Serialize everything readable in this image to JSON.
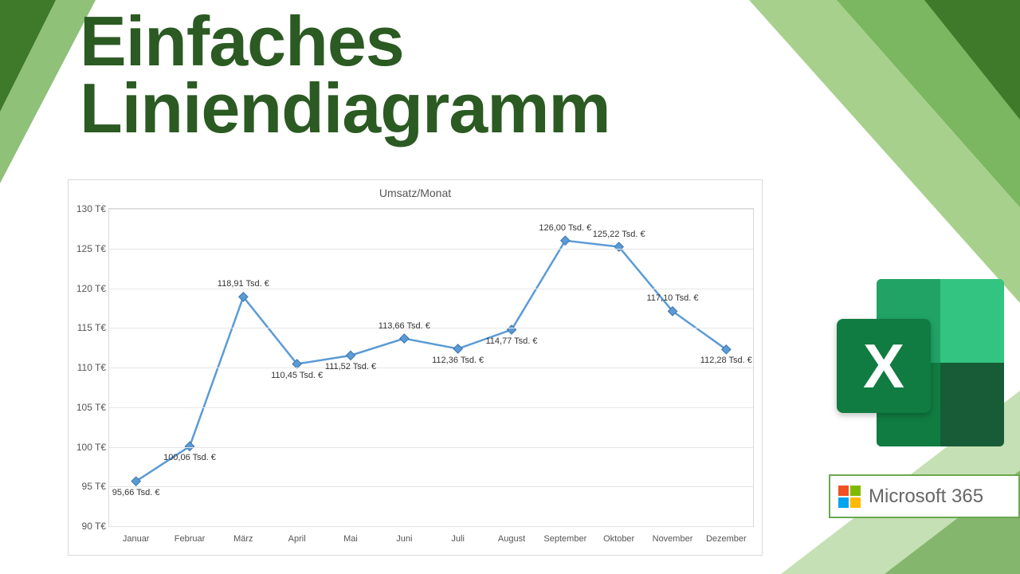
{
  "title_line1": "Einfaches",
  "title_line2": "Liniendiagramm",
  "title_color": "#2b5a22",
  "decor": {
    "triangle_colors": [
      "#5a9a3d",
      "#7bb661",
      "#a8d08d",
      "#3e7a2a",
      "#c5e0b4"
    ]
  },
  "chart": {
    "type": "line",
    "title": "Umsatz/Monat",
    "title_fontsize": 14,
    "line_color": "#5b9bd5",
    "marker_color": "#5b9bd5",
    "marker_border": "#3a75b0",
    "grid_color": "#e5e5e5",
    "border_color": "#d9d9d9",
    "background_color": "#ffffff",
    "label_fontsize": 11,
    "ylim": [
      90,
      130
    ],
    "ytick_step": 5,
    "y_unit_suffix": " T€",
    "categories": [
      "Januar",
      "Februar",
      "März",
      "April",
      "Mai",
      "Juni",
      "Juli",
      "August",
      "September",
      "Oktober",
      "November",
      "Dezember"
    ],
    "values": [
      95.66,
      100.06,
      118.91,
      110.45,
      111.52,
      113.66,
      112.36,
      114.77,
      126.0,
      125.22,
      117.1,
      112.28
    ],
    "data_labels": [
      "95,66 Tsd. €",
      "100,06 Tsd. €",
      "118,91 Tsd. €",
      "110,45 Tsd. €",
      "111,52 Tsd. €",
      "113,66 Tsd. €",
      "112,36 Tsd. €",
      "114,77 Tsd. €",
      "126,00 Tsd. €",
      "125,22 Tsd. €",
      "117,10 Tsd. €",
      "112,28 Tsd. €"
    ],
    "data_label_pos": [
      "below",
      "below",
      "above",
      "below",
      "below",
      "above",
      "below",
      "below",
      "above",
      "above",
      "above",
      "below"
    ]
  },
  "excel_icon": {
    "letter": "X",
    "badge_color": "#107c41",
    "book_colors": [
      "#21a366",
      "#33c481",
      "#107c41",
      "#185c37"
    ]
  },
  "m365": {
    "text": "Microsoft 365",
    "border_color": "#6aa84f",
    "logo_colors": [
      "#f25022",
      "#7fba00",
      "#00a4ef",
      "#ffb900"
    ]
  }
}
